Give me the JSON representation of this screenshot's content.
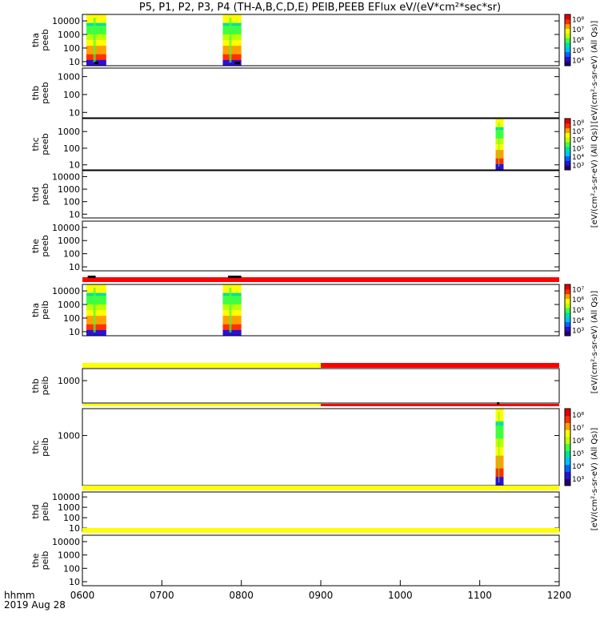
{
  "title": "P5, P1, P2, P3, P4 (TH-A,B,C,D,E) PEIB,PEEB EFlux eV/(eV*cm²*sec*sr)",
  "time_axis": {
    "label_line1": "hhmm",
    "label_line2": "2019 Aug 28",
    "start_hour": 6,
    "end_hour": 12,
    "ticks": [
      "0600",
      "0700",
      "0800",
      "0900",
      "1000",
      "1100",
      "1200"
    ]
  },
  "chart_data": {
    "type": "heatmap",
    "x_units": "hhmm",
    "panels": [
      {
        "ylabel": [
          "tha",
          "peeb"
        ],
        "yticks": [
          "10",
          "100",
          "1000",
          "10000"
        ],
        "ylim": [
          5,
          30000
        ],
        "blocks": [
          {
            "start": "0603",
            "end": "0618"
          },
          {
            "start": "0746",
            "end": "0800"
          }
        ],
        "markers": [
          {
            "start": "0609",
            "end": "0612"
          },
          {
            "start": "0755",
            "end": "0759"
          }
        ]
      },
      {
        "ylabel": [
          "thb",
          "peeb"
        ],
        "yticks": [
          "10",
          "100",
          "1000"
        ],
        "ylim": [
          5,
          3000
        ],
        "blocks": []
      },
      {
        "ylabel": [
          "thc",
          "peeb"
        ],
        "yticks": [
          "10",
          "100",
          "1000"
        ],
        "ylim": [
          5,
          6000
        ],
        "blocks": [
          {
            "start": "1112",
            "end": "1118"
          }
        ]
      },
      {
        "ylabel": [
          "thd",
          "peeb"
        ],
        "yticks": [
          "10",
          "100",
          "1000",
          "10000"
        ],
        "ylim": [
          5,
          30000
        ],
        "blocks": []
      },
      {
        "ylabel": [
          "the",
          "peeb"
        ],
        "yticks": [
          "10",
          "100",
          "1000",
          "10000"
        ],
        "ylim": [
          5,
          30000
        ],
        "blocks": []
      },
      {
        "ylabel": [
          "tha",
          "peib"
        ],
        "yticks": [
          "10",
          "100",
          "1000",
          "10000"
        ],
        "ylim": [
          5,
          30000
        ],
        "blocks": [
          {
            "start": "0603",
            "end": "0618"
          },
          {
            "start": "0746",
            "end": "0800"
          }
        ],
        "mode_bar": [
          {
            "start": "0600",
            "end": "1200",
            "color": "#ff0000"
          }
        ],
        "markers": [
          {
            "start": "0604",
            "end": "0610"
          },
          {
            "start": "0750",
            "end": "0800"
          }
        ]
      },
      {
        "ylabel": [
          "thb",
          "peib"
        ],
        "yticks": [
          "1000"
        ],
        "ylim": [
          50,
          5000
        ],
        "blocks": [],
        "mode_bar": [
          {
            "start": "0600",
            "end": "0900",
            "color": "#ffff00"
          },
          {
            "start": "0900",
            "end": "1200",
            "color": "#ff0000"
          }
        ]
      },
      {
        "ylabel": [
          "thc",
          "peib"
        ],
        "yticks": [
          "1000"
        ],
        "ylim": [
          50,
          5000
        ],
        "blocks": [
          {
            "start": "1112",
            "end": "1118"
          }
        ],
        "mode_bar": [
          {
            "start": "0600",
            "end": "0900",
            "color": "#ffff00"
          },
          {
            "start": "0900",
            "end": "1200",
            "color": "#ff0000"
          }
        ],
        "markers": [
          {
            "start": "1113",
            "end": "1114"
          }
        ]
      },
      {
        "ylabel": [
          "thd",
          "peib"
        ],
        "yticks": [
          "10",
          "100",
          "1000",
          "10000"
        ],
        "ylim": [
          5,
          30000
        ],
        "blocks": [],
        "mode_bar": [
          {
            "start": "0600",
            "end": "1200",
            "color": "#ffff00"
          }
        ]
      },
      {
        "ylabel": [
          "the",
          "peib"
        ],
        "yticks": [
          "10",
          "100",
          "1000",
          "10000"
        ],
        "ylim": [
          5,
          30000
        ],
        "blocks": [],
        "mode_bar": [
          {
            "start": "0600",
            "end": "1200",
            "color": "#ffff00"
          }
        ]
      }
    ],
    "colorbars": [
      {
        "panel": 0,
        "ticks": [
          "10⁴",
          "10⁵",
          "10⁶",
          "10⁷",
          "10⁸"
        ]
      },
      {
        "panel": 2,
        "ticks": [
          "10³",
          "10⁴",
          "10⁵",
          "10⁶",
          "10⁷",
          "10⁸"
        ]
      },
      {
        "panel": 5,
        "ticks": [
          "10³",
          "10⁴",
          "10⁵",
          "10⁶",
          "10⁷"
        ]
      },
      {
        "panel": 7,
        "ticks": [
          "10³",
          "10⁴",
          "10⁵",
          "10⁶",
          "10⁷",
          "10⁸"
        ]
      }
    ],
    "units_labels": [
      "[eV/(cm²-s-sr-eV) (All Qs)]",
      "[eV/(cm²-s-sr-eV) (All Qs)]",
      "[eV/(cm²-s-sr-eV) (All Qs)]",
      "[eV/(cm²-s-sr-eV) (All Qs)]"
    ],
    "colors": {
      "spectrum": [
        "#23006f",
        "#2a10d8",
        "#0066ff",
        "#00c0ff",
        "#00e0a0",
        "#40ff40",
        "#c0ff00",
        "#ffff00",
        "#ffa000",
        "#ff3000",
        "#e00000"
      ]
    }
  }
}
